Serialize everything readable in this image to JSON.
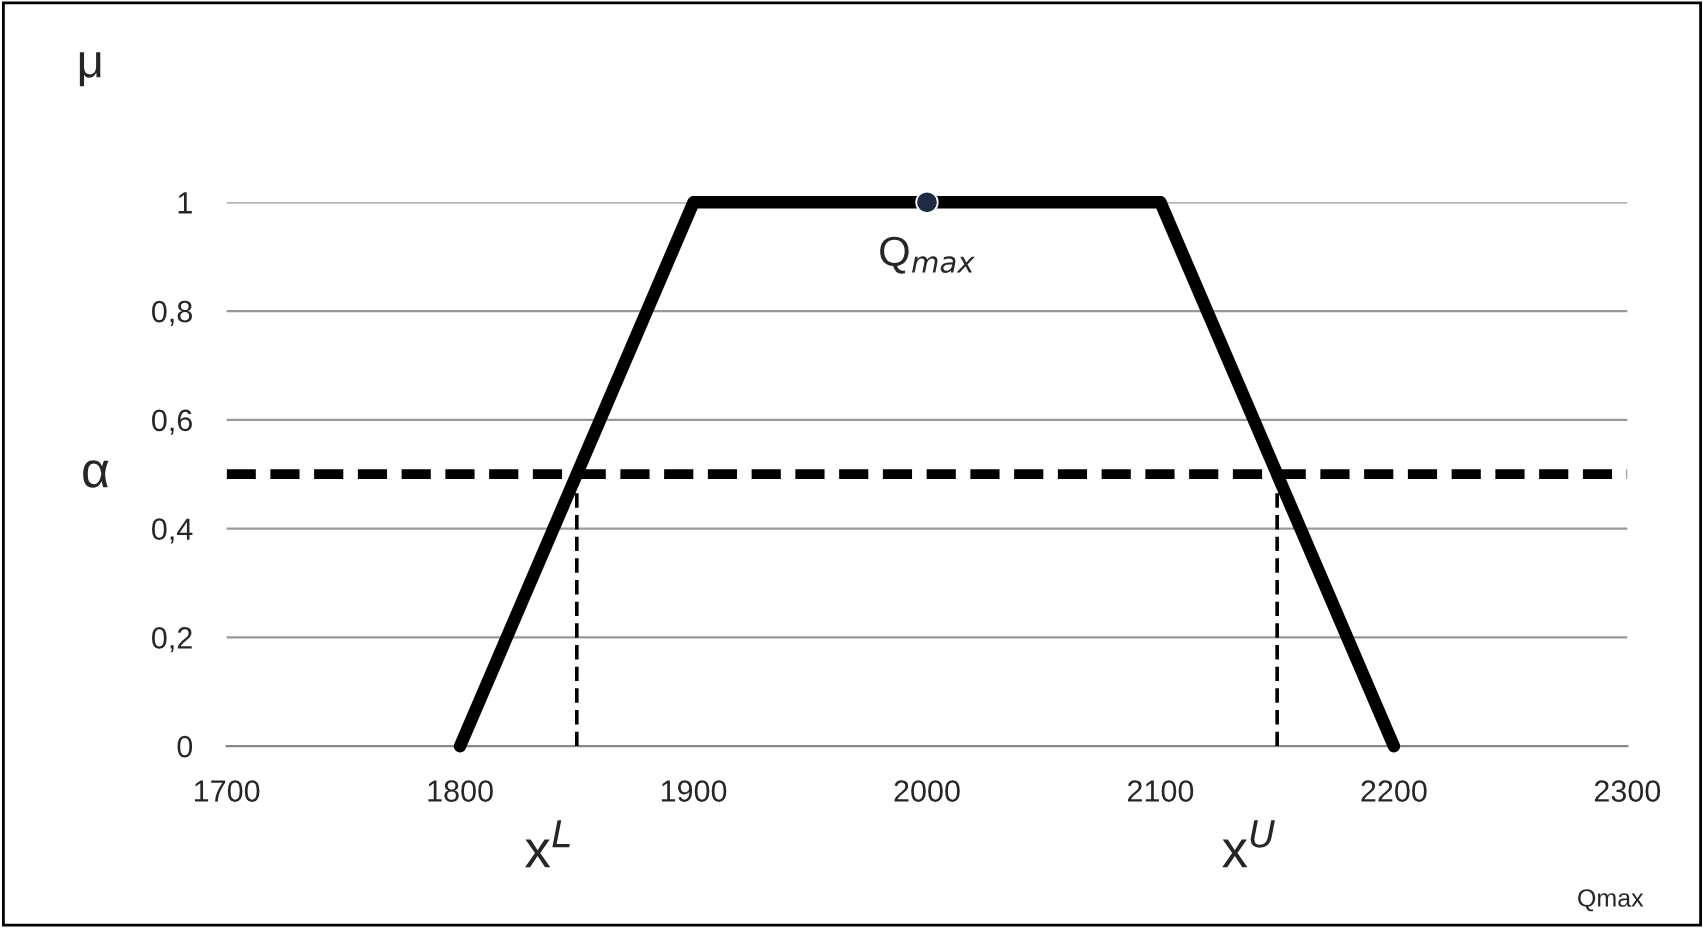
{
  "chart_data": {
    "type": "line",
    "ylabel": "μ",
    "xlabel": "Qmax",
    "series": [
      {
        "type": "line",
        "color": "#000000",
        "x": [
          1800,
          1900,
          2100,
          2200
        ],
        "values": [
          0,
          1,
          1,
          0
        ],
        "line_style": "solid",
        "marker": "none"
      },
      {
        "type": "line",
        "color": "#000000",
        "x": [
          1850,
          1850
        ],
        "values": [
          0,
          0.5
        ],
        "line_style": "dashed",
        "marker": "none"
      },
      {
        "type": "line",
        "color": "#000000",
        "x": [
          2150,
          2150
        ],
        "values": [
          0,
          0.5
        ],
        "line_style": "dashed",
        "marker": "none"
      },
      {
        "type": "scatter",
        "color": "#1f2a44",
        "x": [
          2000
        ],
        "values": [
          1
        ],
        "marker": "circle"
      }
    ],
    "ref_lines": [
      {
        "axis": "y",
        "value": 0.5,
        "label": "α",
        "color": "#000000",
        "line_style": "dashed"
      }
    ],
    "annotations": [
      {
        "text": "Q$_{max}$",
        "x": 2000,
        "y": 1
      },
      {
        "text": "x$^{L}$",
        "x": 1850,
        "y": 0
      },
      {
        "text": "x$^{U}$",
        "x": 2150,
        "y": 0
      }
    ],
    "xlim": [
      1700,
      2300
    ],
    "xticks": [
      1700,
      1800,
      1900,
      2000,
      2100,
      2200,
      2300
    ],
    "ylim": [
      0,
      1
    ],
    "yticks": [
      0,
      {
        "value": 0.2,
        "label": "0,2"
      },
      {
        "value": 0.4,
        "label": "0,4"
      },
      {
        "value": 0.6,
        "label": "0,6"
      },
      {
        "value": 0.8,
        "label": "0,8"
      },
      1
    ],
    "grid": "y",
    "legend": false
  }
}
